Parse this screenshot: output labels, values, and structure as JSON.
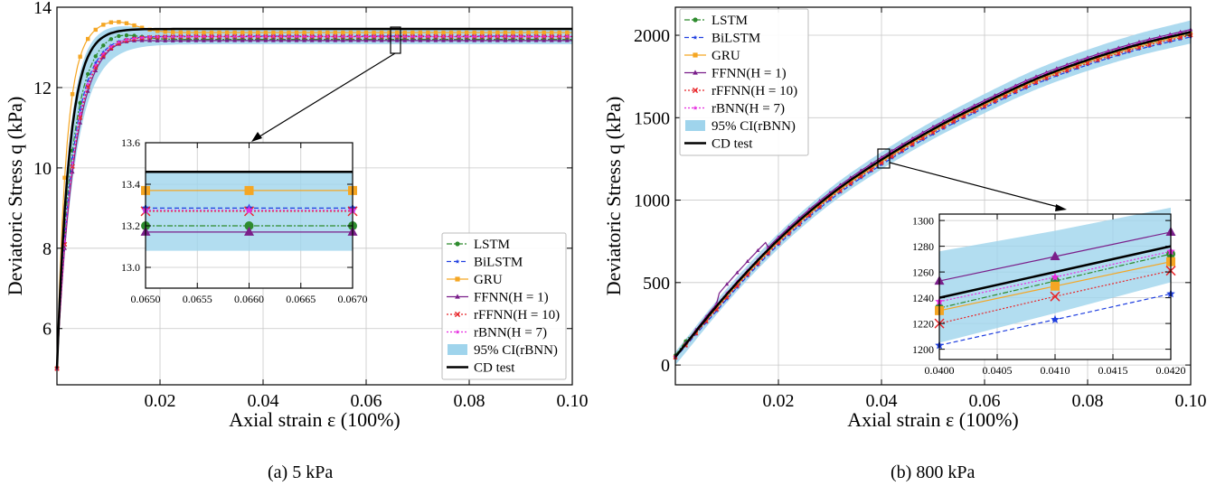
{
  "captions": {
    "a": "(a) 5 kPa",
    "b": "(b) 800 kPa"
  },
  "legend_labels": [
    "LSTM",
    "BiLSTM",
    "GRU",
    "FFNN(H = 1)",
    "rFFNN(H = 10)",
    "rBNN(H = 7)",
    "95% CI(rBNN)",
    "CD test"
  ],
  "colors": {
    "LSTM": "#2e8b2e",
    "BiLSTM": "#1f3fe0",
    "GRU": "#f5a623",
    "FFNN": "#7a1f8a",
    "rFFNN": "#e8262a",
    "rBNN": "#e62ee0",
    "CI": "#9fd4ec",
    "CD": "#000000"
  },
  "chart_data": [
    {
      "type": "line",
      "id": "a",
      "xlabel": "Axial strain ε (100%)",
      "ylabel": "Deviatoric Stress q (kPa)",
      "xlim": [
        0,
        0.1
      ],
      "ylim": [
        4.6,
        14
      ],
      "xticks": [
        0.02,
        0.04,
        0.06,
        0.08,
        0.1
      ],
      "xtick_labels": [
        "0.02",
        "0.04",
        "0.06",
        "0.08",
        "0.10"
      ],
      "yticks": [
        6,
        8,
        10,
        12,
        14
      ],
      "ytick_labels": [
        "6",
        "8",
        "10",
        "12",
        "14"
      ],
      "grid": true,
      "legend": "bottom-right",
      "series": [
        {
          "name": "LSTM",
          "plateau": 13.2,
          "peak": 13.4
        },
        {
          "name": "BiLSTM",
          "plateau": 13.28,
          "peak": 13.3
        },
        {
          "name": "GRU",
          "plateau": 13.37,
          "peak": 13.65
        },
        {
          "name": "FFNN(H = 1)",
          "plateau": 13.17,
          "peak": 13.3
        },
        {
          "name": "rFFNN(H = 10)",
          "plateau": 13.27,
          "peak": 13.3
        },
        {
          "name": "rBNN(H = 7)",
          "plateau": 13.27,
          "peak": 13.3
        },
        {
          "name": "CD test",
          "plateau": 13.46,
          "peak": 13.46
        }
      ],
      "ci": {
        "lower": 13.08,
        "upper": 13.46
      },
      "inset": {
        "xlim": [
          0.065,
          0.067
        ],
        "ylim": [
          12.9,
          13.6
        ],
        "xticks": [
          0.065,
          0.0655,
          0.066,
          0.0665,
          0.067
        ],
        "xtick_labels": [
          "0.0650",
          "0.0655",
          "0.0660",
          "0.0665",
          "0.0670"
        ],
        "yticks": [
          13.0,
          13.2,
          13.4,
          13.6
        ],
        "ytick_labels": [
          "13.0",
          "13.2",
          "13.4",
          "13.6"
        ],
        "values": {
          "LSTM": [
            13.2,
            13.2,
            13.2
          ],
          "BiLSTM": [
            13.285,
            13.285,
            13.285
          ],
          "GRU": [
            13.37,
            13.37,
            13.37
          ],
          "FFNN": [
            13.17,
            13.17,
            13.17
          ],
          "rFFNN": [
            13.27,
            13.27,
            13.27
          ],
          "rBNN": [
            13.275,
            13.275,
            13.275
          ],
          "CD": [
            13.46,
            13.46,
            13.46
          ],
          "CI_low": [
            13.08,
            13.08,
            13.08
          ],
          "CI_high": [
            13.46,
            13.46,
            13.46
          ]
        }
      }
    },
    {
      "type": "line",
      "id": "b",
      "xlabel": "Axial strain ε (100%)",
      "ylabel": "Deviatoric Stress q (kPa)",
      "xlim": [
        0,
        0.1
      ],
      "ylim": [
        -120,
        2170
      ],
      "xticks": [
        0.02,
        0.04,
        0.06,
        0.08,
        0.1
      ],
      "xtick_labels": [
        "0.02",
        "0.04",
        "0.06",
        "0.08",
        "0.10"
      ],
      "yticks": [
        0,
        500,
        1000,
        1500,
        2000
      ],
      "ytick_labels": [
        "0",
        "500",
        "1000",
        "1500",
        "2000"
      ],
      "grid": true,
      "legend": "top-left",
      "series": [
        {
          "name": "CD test",
          "x": [
            0,
            0.01,
            0.02,
            0.03,
            0.04,
            0.05,
            0.06,
            0.07,
            0.08,
            0.09,
            0.1
          ],
          "y": [
            50,
            430,
            760,
            1030,
            1245,
            1430,
            1590,
            1735,
            1850,
            1945,
            2020
          ]
        }
      ],
      "inset": {
        "xlim": [
          0.04,
          0.042
        ],
        "ylim": [
          1192,
          1305
        ],
        "xticks": [
          0.04,
          0.0405,
          0.041,
          0.0415,
          0.042
        ],
        "xtick_labels": [
          "0.0400",
          "0.0405",
          "0.0410",
          "0.0415",
          "0.0420"
        ],
        "yticks": [
          1200,
          1220,
          1240,
          1260,
          1280,
          1300
        ],
        "ytick_labels": [
          "1200",
          "1220",
          "1240",
          "1260",
          "1280",
          "1300"
        ],
        "values": {
          "LSTM": [
            1232,
            1253,
            1274
          ],
          "BiLSTM": [
            1203,
            1223,
            1243
          ],
          "GRU": [
            1230,
            1249,
            1268
          ],
          "FFNN": [
            1253,
            1272,
            1291
          ],
          "rFFNN": [
            1220,
            1241,
            1261
          ],
          "rBNN": [
            1237,
            1256,
            1276
          ],
          "CD": [
            1240,
            1260,
            1280
          ],
          "CI_low": [
            1205,
            1228,
            1252
          ],
          "CI_high": [
            1276,
            1292,
            1310
          ]
        }
      }
    }
  ]
}
